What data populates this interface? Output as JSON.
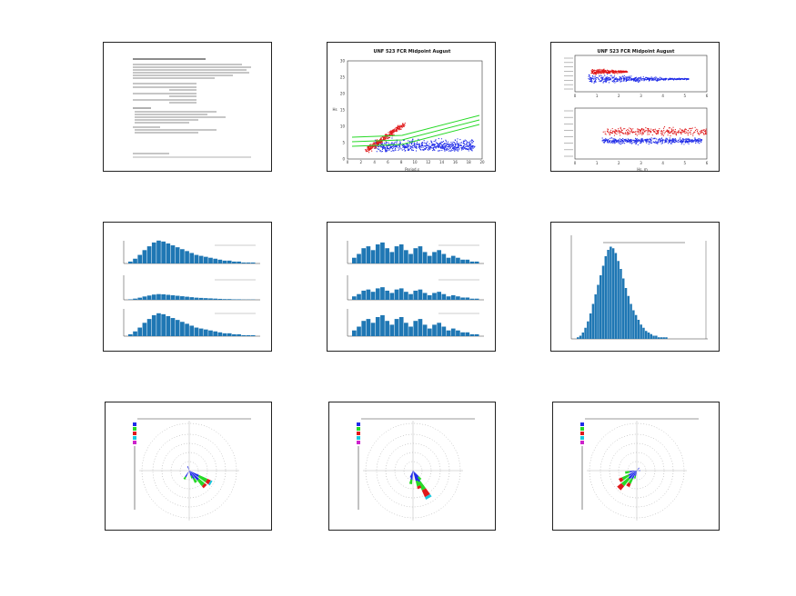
{
  "colors": {
    "blue": "#1f2be8",
    "red": "#e0191b",
    "green": "#26d926",
    "hist": "#1f77b4",
    "frame": "#222222"
  },
  "panels": {
    "text_summary": {},
    "scatter1": {
      "title": "UNF 523 FCR Midpoint August",
      "xlabel": "Period,s",
      "ylabel": "Hs",
      "x_ticks": [
        "0",
        "2",
        "4",
        "6",
        "8",
        "10",
        "12",
        "14",
        "16",
        "18",
        "20"
      ],
      "y_ticks": [
        "0",
        "5",
        "10",
        "15",
        "20",
        "25",
        "30"
      ]
    },
    "scatter2": {
      "title": "UNF 523 FCR Midpoint August",
      "xlabel": "Hs, m",
      "x_ticks": [
        "0",
        "1",
        "2",
        "3",
        "4",
        "5",
        "6"
      ]
    },
    "hist1": {},
    "hist2": {},
    "hist3": {},
    "rose1": {},
    "rose2": {},
    "rose3": {}
  },
  "chart_data": [
    {
      "type": "scatter",
      "title": "UNF 523 FCR Midpoint August",
      "xlabel": "Period,s",
      "ylabel": "Hs",
      "xlim": [
        0,
        20
      ],
      "ylim": [
        0,
        30
      ]
    },
    {
      "type": "scatter",
      "title": "UNF 523 FCR Midpoint August",
      "xlabel": "Hs, m",
      "xlim": [
        0,
        6
      ]
    },
    {
      "type": "bar",
      "values": [
        2,
        5,
        9,
        14,
        18,
        22,
        24,
        23,
        21,
        19,
        17,
        15,
        13,
        11,
        9,
        8,
        7,
        6,
        5,
        4,
        3,
        3,
        2,
        2,
        1,
        1,
        1
      ]
    },
    {
      "type": "bar",
      "values": [
        3,
        5,
        8,
        9,
        7,
        10,
        11,
        8,
        6,
        9,
        10,
        7,
        5,
        8,
        9,
        6,
        4,
        6,
        7,
        5,
        3,
        4,
        3,
        2,
        2,
        1,
        1
      ]
    },
    {
      "type": "bar",
      "values": [
        1,
        2,
        4,
        7,
        11,
        16,
        22,
        28,
        34,
        40,
        46,
        52,
        56,
        58,
        57,
        54,
        49,
        44,
        38,
        32,
        27,
        22,
        18,
        15,
        12,
        9,
        7,
        5,
        4,
        3,
        2,
        2,
        1,
        1,
        1,
        1
      ]
    }
  ]
}
